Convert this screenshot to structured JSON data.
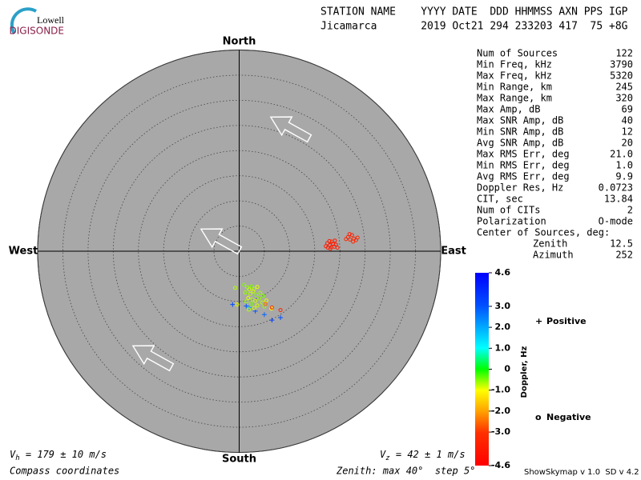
{
  "logo": {
    "top": "Lowell",
    "bottom": "DIGISONDE"
  },
  "header": {
    "labels": "STATION NAME    YYYY DATE  DDD HHMMSS AXN PPS IGP",
    "values": "Jicamarca       2019 Oct21 294 233203 417  75 +8G"
  },
  "stats": [
    [
      "Num of Sources",
      "122"
    ],
    [
      "Min Freq, kHz",
      "3790"
    ],
    [
      "Max Freq, kHz",
      "5320"
    ],
    [
      "Min Range, km",
      "245"
    ],
    [
      "Max Range, km",
      "320"
    ],
    [
      "Max Amp, dB",
      "69"
    ],
    [
      "Max SNR Amp, dB",
      "40"
    ],
    [
      "Min SNR Amp, dB",
      "12"
    ],
    [
      "Avg SNR Amp, dB",
      "20"
    ],
    [
      "Max RMS Err, deg",
      "21.0"
    ],
    [
      "Min RMS Err, deg",
      "1.0"
    ],
    [
      "Avg RMS Err, deg",
      "9.9"
    ],
    [
      "Doppler Res, Hz",
      "0.0723"
    ],
    [
      "CIT, sec",
      "13.84"
    ],
    [
      "Num of CITs",
      "2"
    ],
    [
      "Polarization",
      "O-mode"
    ]
  ],
  "center": {
    "title": "Center of Sources, deg:",
    "rows": [
      [
        "Zenith",
        "12.5"
      ],
      [
        "Azimuth",
        "252"
      ]
    ]
  },
  "chart_data": {
    "type": "skymap",
    "directions": {
      "north": "North",
      "south": "South",
      "west": "West",
      "east": "East"
    },
    "rings": [
      5,
      10,
      15,
      20,
      25,
      30,
      35,
      40
    ],
    "colorbar": {
      "label": "Doppler, Hz",
      "lim": [
        -4.6,
        4.6
      ],
      "ticks": [
        4.6,
        {
          "value": 3,
          "label": "3.0"
        },
        {
          "value": 2,
          "label": "2.0"
        },
        {
          "value": 1,
          "label": "1.0"
        },
        0,
        {
          "value": -1,
          "label": "-1.0"
        },
        {
          "value": -2,
          "label": "-2.0"
        },
        {
          "value": -3,
          "label": "-3.0"
        },
        -4.6
      ]
    },
    "series": [
      {
        "name": "Positive",
        "marker": "+",
        "color": "#0000cc",
        "x": [
          -1.3,
          3.2,
          5.0,
          6.5,
          8.2,
          1.4,
          2.0
        ],
        "y": [
          -10.6,
          -11.9,
          -12.6,
          -13.7,
          -13.2,
          -10.9,
          -11.2
        ],
        "doppler": [
          3.2,
          3.0,
          2.8,
          3.4,
          3.1,
          2.9,
          2.0
        ]
      },
      {
        "name": "Negative",
        "marker": "o",
        "color": "#dd0000",
        "x": [
          17.2,
          17.6,
          18.0,
          18.3,
          18.6,
          17.9,
          18.9,
          19.2,
          19.5,
          18.1,
          19.0,
          17.5,
          18.4,
          21.2,
          21.6,
          22.0,
          22.4,
          22.8,
          23.2,
          23.5,
          21.9,
          22.6,
          1.0,
          1.6,
          2.0,
          2.5,
          3.0,
          3.6,
          1.2,
          2.2,
          2.8,
          3.4,
          4.2,
          1.8,
          2.6,
          3.2,
          4.0,
          4.6,
          5.4,
          2.4,
          3.6,
          5.0,
          -0.8,
          -0.4,
          4.8,
          1.4,
          6.4,
          3.0,
          1.9,
          6.5,
          8.2,
          5.2
        ],
        "y": [
          1.0,
          0.7,
          1.2,
          0.8,
          1.5,
          2.0,
          0.9,
          1.3,
          0.7,
          0.5,
          2.1,
          1.6,
          1.9,
          2.4,
          2.8,
          2.3,
          3.2,
          2.5,
          2.2,
          2.7,
          3.4,
          1.9,
          -6.7,
          -7.2,
          -7.6,
          -7.0,
          -7.5,
          -7.1,
          -8.2,
          -8.5,
          -8.0,
          -8.7,
          -8.3,
          -9.3,
          -9.6,
          -9.9,
          -9.4,
          -10.2,
          -9.8,
          -10.5,
          -10.8,
          -11.0,
          -7.3,
          -10.6,
          -8.9,
          -10.0,
          -11.4,
          -11.3,
          -11.6,
          -11.2,
          -11.7,
          -10.5
        ],
        "doppler": [
          -3.8,
          -3.6,
          -3.9,
          -3.7,
          -3.5,
          -3.8,
          -3.6,
          -3.9,
          -3.7,
          -3.4,
          -3.8,
          -3.6,
          -3.5,
          -3.3,
          -3.5,
          -3.4,
          -3.6,
          -3.3,
          -3.5,
          -3.4,
          -3.7,
          -3.3,
          -0.5,
          -0.6,
          -0.8,
          -0.5,
          -0.7,
          -0.9,
          -0.6,
          -0.7,
          -0.8,
          -0.5,
          -0.6,
          -0.9,
          -0.7,
          -0.8,
          -0.6,
          -0.7,
          -0.9,
          -0.5,
          -0.8,
          -0.6,
          -0.7,
          -0.9,
          -0.5,
          -0.6,
          -1.0,
          -0.8,
          -0.7,
          -3.1,
          -3.5,
          -2.6
        ]
      }
    ]
  },
  "footer": {
    "vh": {
      "symbol": "V",
      "sub": "h",
      "text": " = 179 ± 10 m/s"
    },
    "vz": {
      "symbol": "V",
      "sub": "z",
      "text": " = 42 ± 1 m/s"
    },
    "coords": "Compass coordinates",
    "zenith": "Zenith: max 40°  step 5°",
    "version": "ShowSkymap v 1.0  SD v 4.2"
  }
}
